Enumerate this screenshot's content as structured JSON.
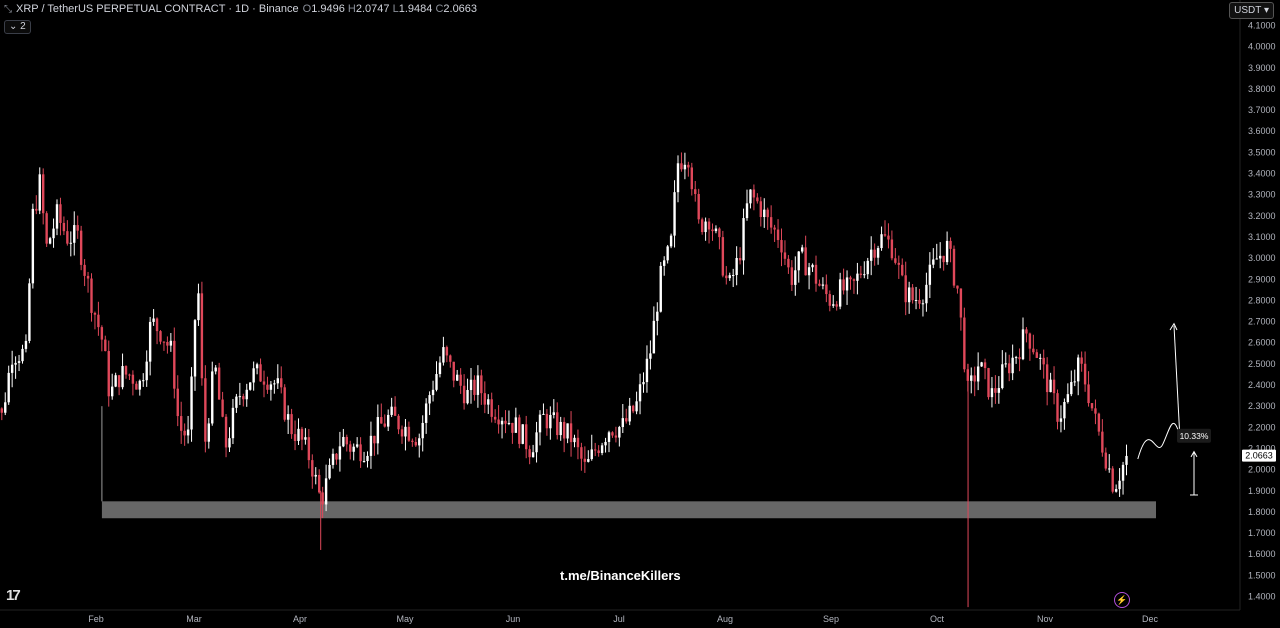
{
  "header": {
    "symbol": "XRP / TetherUS PERPETUAL CONTRACT · 1D · Binance",
    "o_label": "O",
    "o_value": "1.9496",
    "h_label": "H",
    "h_value": "2.0747",
    "l_label": "L",
    "l_value": "1.9484",
    "c_label": "C",
    "c_value": "2.0663",
    "indicators_count": "2"
  },
  "currency_button": "USDT",
  "watermark": "t.me/BinanceKillers",
  "colors": {
    "up": "#ffffff",
    "down": "#e0485a",
    "background": "#000000",
    "zone": "#8a8a8a",
    "grid": "#111111"
  },
  "chart_data": {
    "type": "candlestick",
    "y_axis_labels": [
      "4.1000",
      "4.0000",
      "3.9000",
      "3.8000",
      "3.7000",
      "3.6000",
      "3.5000",
      "3.4000",
      "3.3000",
      "3.2000",
      "3.1000",
      "3.0000",
      "2.9000",
      "2.8000",
      "2.7000",
      "2.6000",
      "2.5000",
      "2.4000",
      "2.3000",
      "2.2000",
      "2.1000",
      "2.0000",
      "1.9000",
      "1.8000",
      "1.7000",
      "1.6000",
      "1.5000",
      "1.4000"
    ],
    "ylim": [
      1.35,
      4.15
    ],
    "x_axis_labels": [
      "Feb",
      "Mar",
      "Apr",
      "May",
      "Jun",
      "Jul",
      "Aug",
      "Sep",
      "Oct",
      "Nov",
      "Dec"
    ],
    "last_price": "2.0663",
    "projection_label": "10.33%",
    "support_zone": [
      1.77,
      1.85
    ],
    "close_path": [
      [
        "Jan 1",
        2.45
      ],
      [
        "Jan 5",
        2.25
      ],
      [
        "Jan 8",
        2.55
      ],
      [
        "Jan 12",
        2.55
      ],
      [
        "Jan 14",
        3.2
      ],
      [
        "Jan 16",
        3.35
      ],
      [
        "Jan 18",
        3.05
      ],
      [
        "Jan 21",
        3.2
      ],
      [
        "Jan 24",
        3.1
      ],
      [
        "Jan 27",
        3.1
      ],
      [
        "Jan 31",
        2.8
      ],
      [
        "Feb 3",
        2.6
      ],
      [
        "Feb 5",
        2.35
      ],
      [
        "Feb 8",
        2.45
      ],
      [
        "Feb 11",
        2.45
      ],
      [
        "Feb 14",
        2.4
      ],
      [
        "Feb 17",
        2.7
      ],
      [
        "Feb 20",
        2.65
      ],
      [
        "Feb 23",
        2.55
      ],
      [
        "Feb 25",
        2.2
      ],
      [
        "Feb 28",
        2.15
      ],
      [
        "Mar 2",
        2.95
      ],
      [
        "Mar 4",
        2.1
      ],
      [
        "Mar 7",
        2.5
      ],
      [
        "Mar 10",
        2.1
      ],
      [
        "Mar 14",
        2.35
      ],
      [
        "Mar 18",
        2.45
      ],
      [
        "Mar 21",
        2.45
      ],
      [
        "Mar 25",
        2.4
      ],
      [
        "Mar 29",
        2.2
      ],
      [
        "Apr 1",
        2.15
      ],
      [
        "Apr 4",
        2.05
      ],
      [
        "Apr 7",
        1.85
      ],
      [
        "Apr 10",
        2.0
      ],
      [
        "Apr 13",
        2.15
      ],
      [
        "Apr 16",
        2.1
      ],
      [
        "Apr 20",
        2.1
      ],
      [
        "Apr 24",
        2.2
      ],
      [
        "Apr 27",
        2.25
      ],
      [
        "May 1",
        2.2
      ],
      [
        "May 5",
        2.15
      ],
      [
        "May 8",
        2.35
      ],
      [
        "May 12",
        2.55
      ],
      [
        "May 15",
        2.45
      ],
      [
        "May 19",
        2.35
      ],
      [
        "May 22",
        2.4
      ],
      [
        "May 26",
        2.3
      ],
      [
        "May 30",
        2.25
      ],
      [
        "Jun 2",
        2.2
      ],
      [
        "Jun 6",
        2.1
      ],
      [
        "Jun 10",
        2.25
      ],
      [
        "Jun 14",
        2.2
      ],
      [
        "Jun 18",
        2.15
      ],
      [
        "Jun 22",
        2.0
      ],
      [
        "Jun 25",
        2.1
      ],
      [
        "Jun 29",
        2.2
      ],
      [
        "Jul 2",
        2.2
      ],
      [
        "Jul 6",
        2.3
      ],
      [
        "Jul 10",
        2.55
      ],
      [
        "Jul 13",
        2.9
      ],
      [
        "Jul 16",
        3.05
      ],
      [
        "Jul 18",
        3.45
      ],
      [
        "Jul 21",
        3.5
      ],
      [
        "Jul 24",
        3.15
      ],
      [
        "Jul 27",
        3.2
      ],
      [
        "Jul 30",
        3.05
      ],
      [
        "Aug 2",
        2.85
      ],
      [
        "Aug 5",
        3.0
      ],
      [
        "Aug 8",
        3.3
      ],
      [
        "Aug 11",
        3.25
      ],
      [
        "Aug 14",
        3.15
      ],
      [
        "Aug 17",
        3.1
      ],
      [
        "Aug 20",
        2.9
      ],
      [
        "Aug 23",
        3.0
      ],
      [
        "Aug 26",
        2.95
      ],
      [
        "Aug 29",
        2.85
      ],
      [
        "Sep 1",
        2.8
      ],
      [
        "Sep 4",
        2.85
      ],
      [
        "Sep 7",
        2.85
      ],
      [
        "Sep 10",
        2.95
      ],
      [
        "Sep 13",
        3.05
      ],
      [
        "Sep 16",
        3.1
      ],
      [
        "Sep 19",
        3.05
      ],
      [
        "Sep 22",
        2.85
      ],
      [
        "Sep 25",
        2.8
      ],
      [
        "Sep 28",
        2.85
      ],
      [
        "Oct 1",
        3.0
      ],
      [
        "Oct 4",
        3.05
      ],
      [
        "Oct 7",
        2.85
      ],
      [
        "Oct 10",
        2.35
      ],
      [
        "Oct 13",
        2.5
      ],
      [
        "Oct 17",
        2.35
      ],
      [
        "Oct 20",
        2.45
      ],
      [
        "Oct 24",
        2.55
      ],
      [
        "Oct 27",
        2.65
      ],
      [
        "Oct 30",
        2.55
      ],
      [
        "Nov 3",
        2.35
      ],
      [
        "Nov 5",
        2.25
      ],
      [
        "Nov 8",
        2.35
      ],
      [
        "Nov 11",
        2.5
      ],
      [
        "Nov 13",
        2.4
      ],
      [
        "Nov 16",
        2.2
      ],
      [
        "Nov 18",
        2.1
      ],
      [
        "Nov 21",
        1.92
      ],
      [
        "Nov 23",
        2.0
      ],
      [
        "Nov 25",
        2.0663
      ]
    ]
  }
}
